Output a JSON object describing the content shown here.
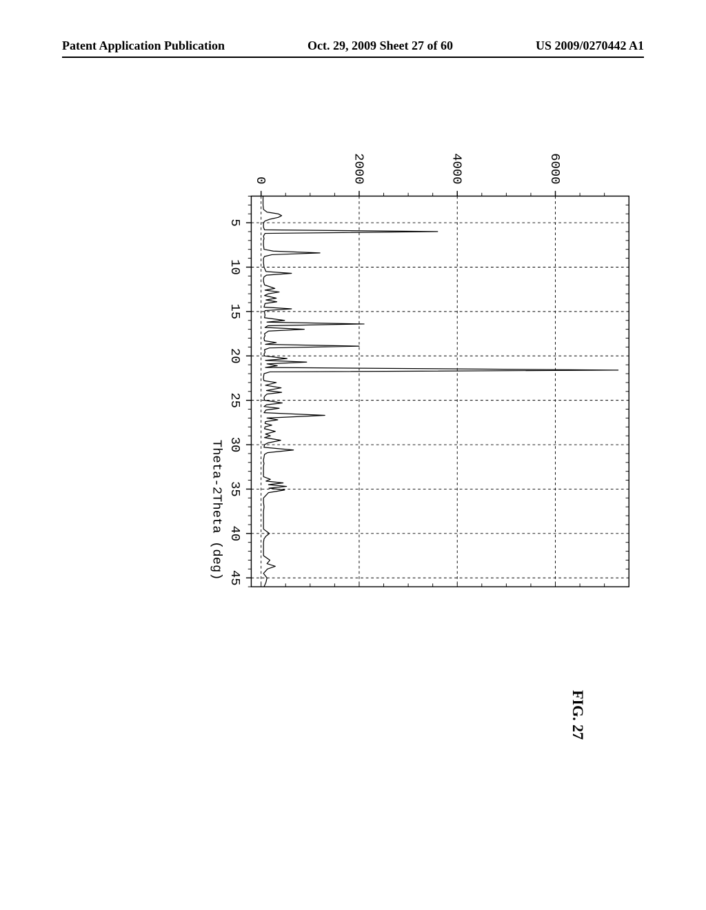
{
  "header": {
    "left": "Patent Application Publication",
    "center": "Oct. 29, 2009  Sheet 27 of 60",
    "right": "US 2009/0270442 A1"
  },
  "figure": {
    "caption": "FIG. 27",
    "type": "line",
    "xlabel": "Theta-2Theta (deg)",
    "ylabel": "",
    "xlim": [
      2,
      46
    ],
    "ylim": [
      -200,
      7500
    ],
    "xticks": [
      5,
      10,
      15,
      20,
      25,
      30,
      35,
      40,
      45
    ],
    "yticks": [
      0,
      2000,
      4000,
      6000
    ],
    "grid_color": "#000000",
    "grid_dash": "4,4",
    "axis_color": "#000000",
    "line_color": "#000000",
    "background_color": "#ffffff",
    "tick_font_family": "Courier, monospace",
    "tick_fontsize": 20,
    "label_fontsize": 20,
    "aspect_w": 720,
    "aspect_h": 680,
    "series": {
      "x": [
        2.0,
        3.0,
        3.5,
        3.8,
        4.0,
        4.2,
        4.4,
        4.6,
        4.8,
        5.0,
        5.5,
        5.8,
        6.0,
        6.2,
        6.5,
        6.8,
        7.0,
        7.2,
        7.5,
        8.0,
        8.2,
        8.4,
        8.6,
        8.8,
        9.0,
        9.5,
        10.0,
        10.5,
        10.7,
        10.9,
        11.1,
        11.3,
        11.6,
        12.0,
        12.4,
        12.6,
        12.8,
        13.0,
        13.2,
        13.5,
        13.7,
        13.9,
        14.1,
        14.5,
        14.7,
        14.9,
        15.1,
        15.4,
        15.7,
        16.0,
        16.2,
        16.4,
        16.6,
        16.8,
        17.0,
        17.2,
        17.5,
        17.7,
        18.0,
        18.3,
        18.5,
        18.7,
        18.9,
        19.1,
        19.3,
        19.6,
        19.8,
        20.0,
        20.3,
        20.5,
        20.7,
        20.9,
        21.1,
        21.3,
        21.6,
        21.8,
        22.0,
        22.2,
        22.4,
        22.6,
        22.8,
        23.0,
        23.3,
        23.6,
        23.9,
        24.1,
        24.3,
        24.5,
        24.7,
        25.0,
        25.3,
        25.5,
        25.7,
        25.9,
        26.1,
        26.4,
        26.7,
        27.0,
        27.2,
        27.4,
        27.6,
        27.8,
        28.0,
        28.2,
        28.5,
        28.8,
        29.0,
        29.2,
        29.5,
        29.8,
        30.0,
        30.3,
        30.6,
        30.9,
        31.1,
        31.4,
        31.7,
        31.9,
        32.1,
        32.4,
        32.7,
        33.0,
        33.3,
        33.6,
        33.9,
        34.1,
        34.3,
        34.5,
        34.7,
        34.9,
        35.1,
        35.4,
        36.0,
        36.5,
        37.0,
        37.5,
        38.0,
        38.5,
        39.0,
        39.5,
        40.0,
        40.3,
        40.6,
        41.0,
        41.5,
        42.0,
        42.5,
        43.0,
        43.4,
        43.7,
        44.0,
        44.5,
        45.0,
        45.5,
        46.0
      ],
      "y": [
        40,
        40,
        50,
        120,
        350,
        420,
        350,
        180,
        80,
        50,
        50,
        70,
        3600,
        80,
        50,
        60,
        50,
        50,
        50,
        60,
        250,
        1200,
        220,
        70,
        50,
        50,
        60,
        100,
        620,
        110,
        60,
        50,
        50,
        70,
        280,
        80,
        370,
        150,
        70,
        310,
        100,
        320,
        80,
        60,
        620,
        80,
        70,
        80,
        70,
        480,
        120,
        2100,
        140,
        80,
        880,
        150,
        70,
        80,
        60,
        70,
        310,
        90,
        2000,
        170,
        70,
        80,
        60,
        70,
        530,
        90,
        930,
        120,
        330,
        90,
        7280,
        180,
        60,
        55,
        50,
        50,
        60,
        310,
        90,
        410,
        110,
        420,
        120,
        80,
        60,
        70,
        430,
        110,
        60,
        370,
        100,
        60,
        1300,
        120,
        340,
        90,
        80,
        220,
        80,
        70,
        290,
        90,
        190,
        70,
        400,
        140,
        70,
        60,
        660,
        130,
        70,
        60,
        50,
        50,
        60,
        50,
        50,
        50,
        50,
        50,
        190,
        100,
        450,
        150,
        520,
        160,
        480,
        150,
        50,
        50,
        60,
        50,
        50,
        50,
        50,
        50,
        170,
        100,
        60,
        50,
        50,
        50,
        50,
        180,
        120,
        290,
        130,
        50,
        120,
        100,
        60
      ]
    }
  }
}
